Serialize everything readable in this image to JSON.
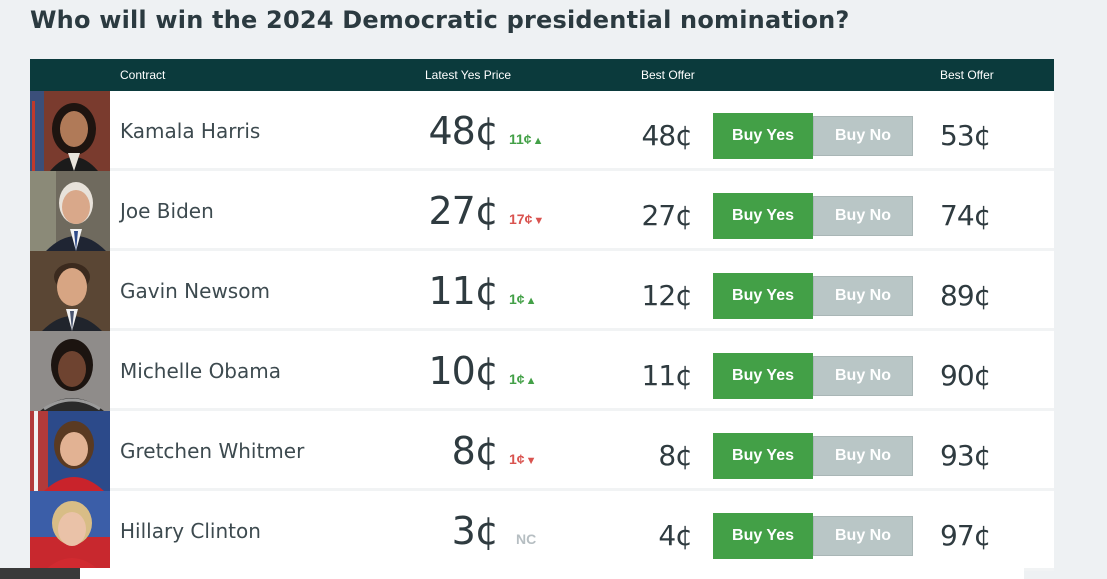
{
  "page": {
    "title": "Who will win the 2024 Democratic presidential nomination?"
  },
  "table": {
    "headers": {
      "contract": "Contract",
      "latest": "Latest Yes Price",
      "best_offer_yes": "Best Offer",
      "best_offer_no": "Best Offer"
    },
    "buttons": {
      "buy_yes": "Buy Yes",
      "buy_no": "Buy No"
    },
    "rows": [
      {
        "name": "Kamala Harris",
        "price": "48¢",
        "change": "11¢",
        "direction": "up",
        "arrow": "▲",
        "best_offer_yes": "48¢",
        "best_offer_no": "53¢"
      },
      {
        "name": "Joe Biden",
        "price": "27¢",
        "change": "17¢",
        "direction": "down",
        "arrow": "▼",
        "best_offer_yes": "27¢",
        "best_offer_no": "74¢"
      },
      {
        "name": "Gavin Newsom",
        "price": "11¢",
        "change": "1¢",
        "direction": "up",
        "arrow": "▲",
        "best_offer_yes": "12¢",
        "best_offer_no": "89¢"
      },
      {
        "name": "Michelle Obama",
        "price": "10¢",
        "change": "1¢",
        "direction": "up",
        "arrow": "▲",
        "best_offer_yes": "11¢",
        "best_offer_no": "90¢"
      },
      {
        "name": "Gretchen Whitmer",
        "price": "8¢",
        "change": "1¢",
        "direction": "down",
        "arrow": "▼",
        "best_offer_yes": "8¢",
        "best_offer_no": "93¢"
      },
      {
        "name": "Hillary Clinton",
        "price": "3¢",
        "change": "NC",
        "direction": "nc",
        "arrow": "",
        "best_offer_yes": "4¢",
        "best_offer_no": "97¢"
      }
    ]
  },
  "colors": {
    "header_bg": "#0b3a3c",
    "buy_yes": "#43a047",
    "buy_no": "#b9c6c6",
    "up": "#43a047",
    "down": "#d9534f"
  }
}
